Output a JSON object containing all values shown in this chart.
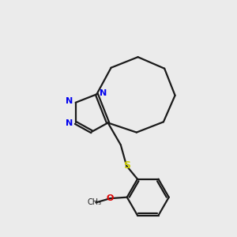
{
  "bg_color": "#ebebeb",
  "bond_color": "#1a1a1a",
  "N_color": "#0000ee",
  "S_color": "#cccc00",
  "O_color": "#dd0000",
  "bond_width": 1.6,
  "dbo": 0.055,
  "fig_w": 3.0,
  "fig_h": 3.0,
  "dpi": 100,
  "xlim": [
    0,
    10
  ],
  "ylim": [
    0,
    10
  ],
  "label_fs": 8.0,
  "methoxy_fs": 7.0
}
